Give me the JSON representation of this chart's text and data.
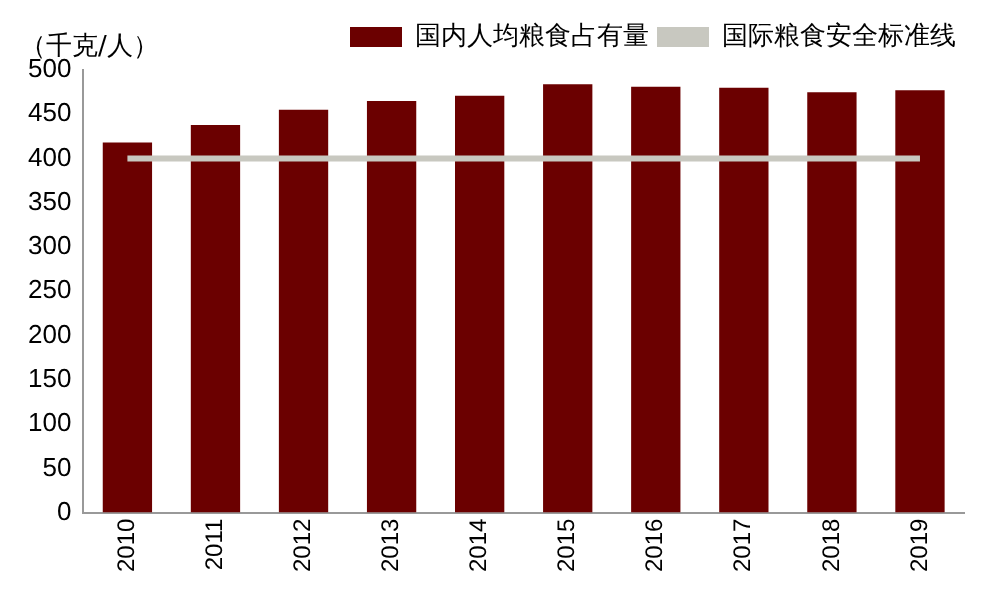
{
  "chart_data": {
    "type": "bar",
    "ylabel": "（千克/人）",
    "categories": [
      "2010",
      "2011",
      "2012",
      "2013",
      "2014",
      "2015",
      "2016",
      "2017",
      "2018",
      "2019"
    ],
    "series": [
      {
        "name": "国内人均粮食占有量",
        "color": "#6b0000",
        "values": [
          418,
          438,
          455,
          465,
          471,
          484,
          481,
          480,
          475,
          477
        ]
      },
      {
        "name": "国际粮食安全标准线",
        "type": "line",
        "color": "#c8c8c0",
        "values": [
          400,
          400,
          400,
          400,
          400,
          400,
          400,
          400,
          400,
          400
        ]
      }
    ],
    "ylim": [
      0,
      500
    ],
    "yticks": [
      0,
      50,
      100,
      150,
      200,
      250,
      300,
      350,
      400,
      450,
      500
    ],
    "grid": false,
    "legend": "top",
    "marker": "none"
  }
}
